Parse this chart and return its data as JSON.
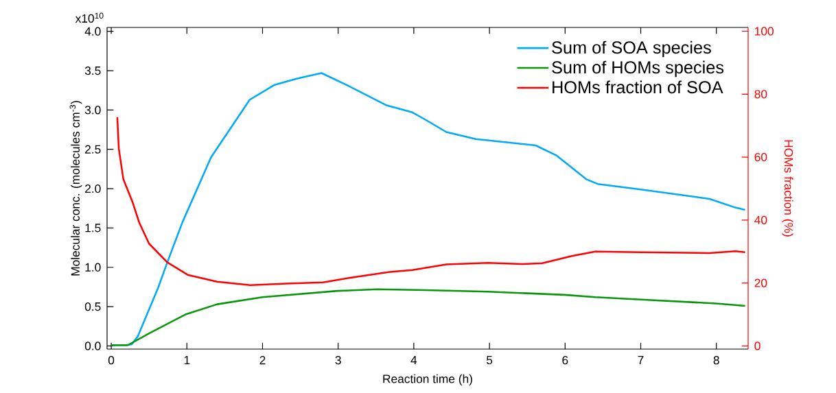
{
  "chart_data": {
    "type": "line",
    "xlabel": "Reaction time (h)",
    "ylabel": "Molecular conc. (molecules cm$^{-3}$)",
    "y2label": "HOMs fraction (%)",
    "xlim": [
      -0.055,
      8.42
    ],
    "xticks": [
      0,
      1,
      2,
      3,
      4,
      5,
      6,
      7,
      8
    ],
    "ylim": [
      -0.04,
      4.05
    ],
    "yticks": [
      {
        "value": 0,
        "label": "0.0"
      },
      0.5,
      {
        "value": 1,
        "label": "1.0"
      },
      1.5,
      {
        "value": 2,
        "label": "2.0"
      },
      2.5,
      {
        "value": 3,
        "label": "3.0"
      },
      3.5,
      {
        "value": 4,
        "label": "4.0"
      }
    ],
    "annotations": [
      "x10$^{10}$"
    ],
    "y2lim": [
      -1,
      101.2
    ],
    "y2ticks": [
      0,
      20,
      40,
      60,
      80,
      100
    ],
    "legend": "top right",
    "series": [
      {
        "name": "Sum of SOA species",
        "color": "#00aaf5",
        "x": [
          0.0,
          0.1,
          0.2,
          0.27,
          0.35,
          0.62,
          0.74,
          0.94,
          1.32,
          1.83,
          2.16,
          2.46,
          2.78,
          3.13,
          3.64,
          3.98,
          4.13,
          4.43,
          4.82,
          5.61,
          5.89,
          6.28,
          6.43,
          7.0,
          7.91,
          8.25,
          8.38
        ],
        "values": [
          0.01,
          0.01,
          0.01,
          0.02,
          0.12,
          0.74,
          1.06,
          1.57,
          2.4,
          3.13,
          3.32,
          3.4,
          3.47,
          3.31,
          3.06,
          2.97,
          2.89,
          2.72,
          2.63,
          2.55,
          2.42,
          2.12,
          2.06,
          1.99,
          1.87,
          1.76,
          1.73
        ]
      },
      {
        "name": "Sum of HOMs species",
        "color": "#0a960a",
        "x": [
          0.0,
          0.1,
          0.22,
          0.5,
          0.98,
          1.4,
          2.0,
          2.99,
          3.52,
          4.16,
          4.98,
          5.99,
          6.4,
          7.0,
          8.0,
          8.38
        ],
        "values": [
          0.01,
          0.01,
          0.01,
          0.16,
          0.4,
          0.53,
          0.62,
          0.7,
          0.72,
          0.71,
          0.69,
          0.65,
          0.62,
          0.59,
          0.54,
          0.51
        ]
      },
      {
        "name": "HOMs fraction of SOA",
        "color": "#ff0000",
        "axis": "y2",
        "x": [
          0.08,
          0.1,
          0.16,
          0.28,
          0.37,
          0.5,
          0.74,
          1.01,
          1.4,
          1.84,
          2.31,
          2.8,
          3.22,
          3.68,
          3.98,
          4.43,
          4.98,
          5.43,
          5.7,
          6.09,
          6.4,
          7.0,
          7.91,
          8.25,
          8.38
        ],
        "values": [
          72.7,
          62.7,
          53,
          45.8,
          39.2,
          32.5,
          26.6,
          22.6,
          20.4,
          19.3,
          19.8,
          20.2,
          21.9,
          23.5,
          24.1,
          25.9,
          26.4,
          26.0,
          26.3,
          28.6,
          30.0,
          29.8,
          29.5,
          30.1,
          29.8
        ]
      }
    ]
  }
}
